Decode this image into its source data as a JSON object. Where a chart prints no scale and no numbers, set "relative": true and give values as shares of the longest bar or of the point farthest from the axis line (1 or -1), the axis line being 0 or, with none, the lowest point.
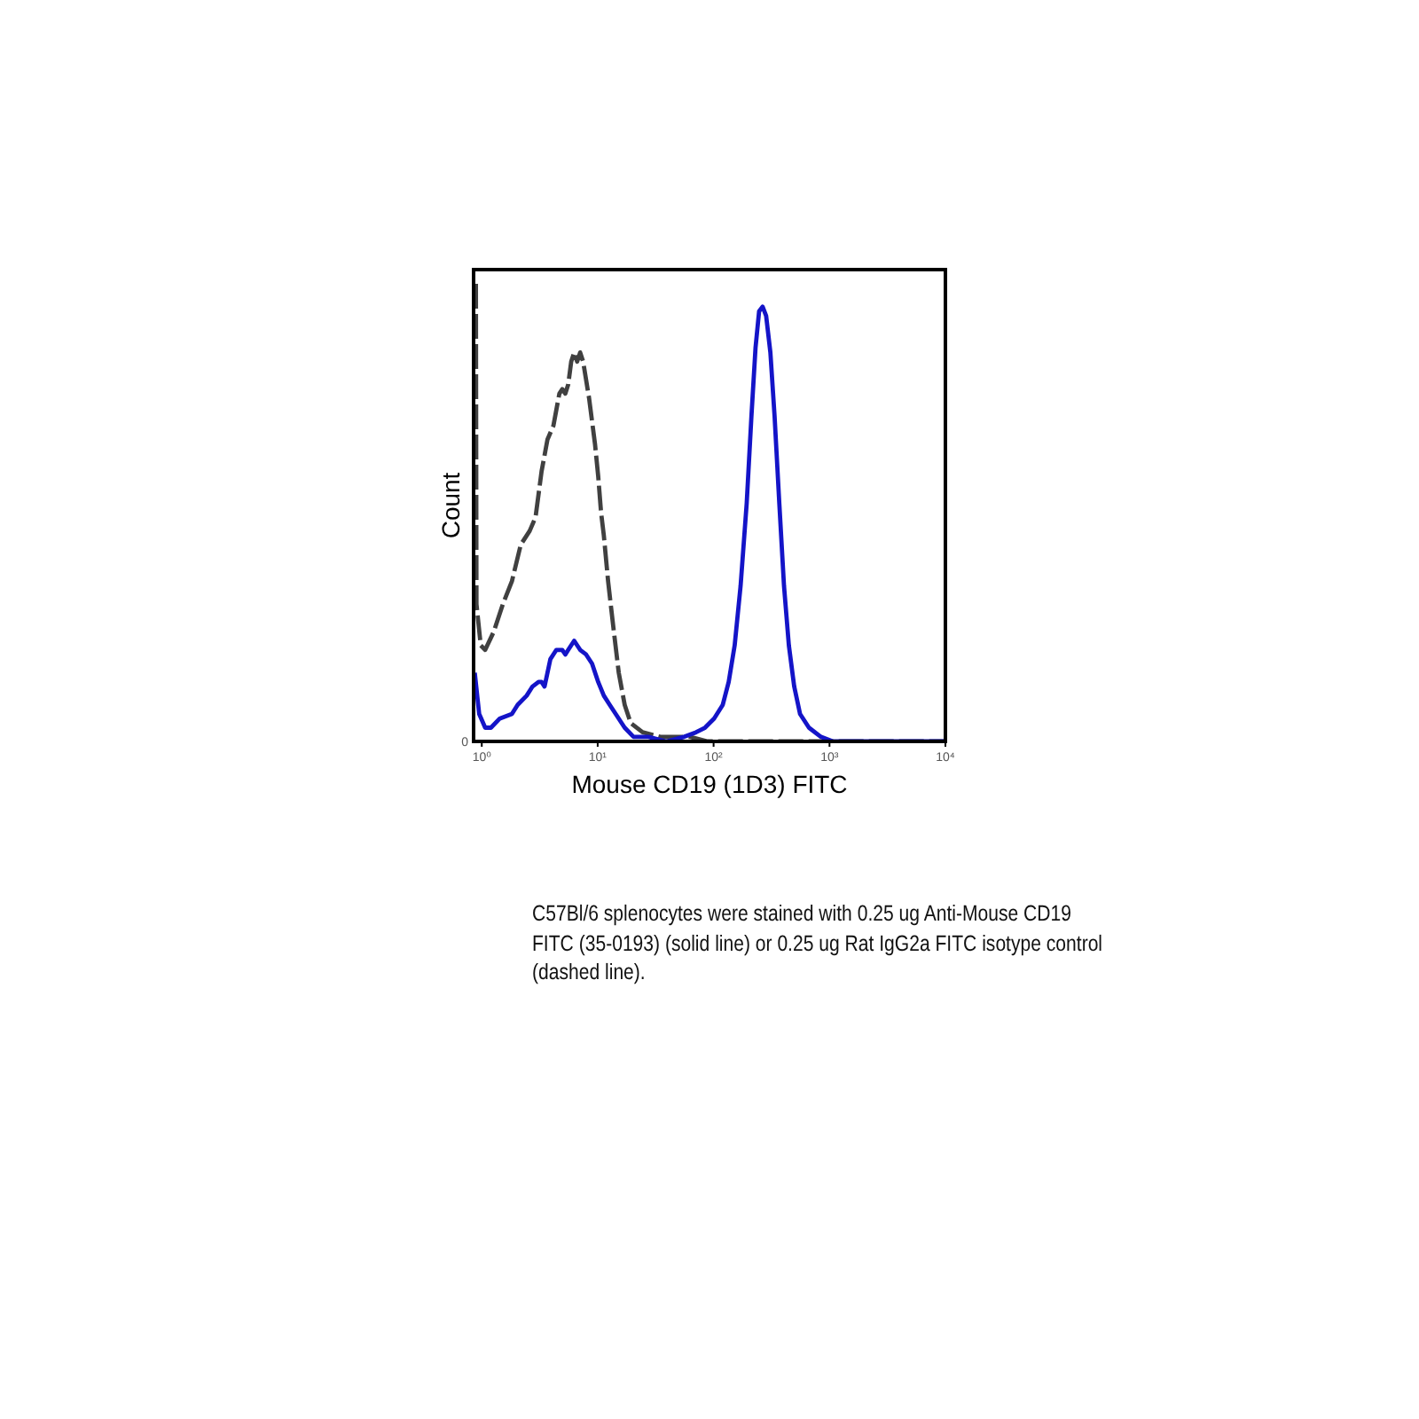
{
  "chart_data": {
    "type": "line",
    "relative": true,
    "xlabel": "Mouse CD19 (1D3) FITC",
    "ylabel": "Count",
    "log": "x",
    "xlim": [
      0.85,
      10000
    ],
    "xticks": [
      {
        "value": 1,
        "label": "10⁰"
      },
      {
        "value": 10,
        "label": "10¹"
      },
      {
        "value": 100,
        "label": "10²"
      },
      {
        "value": 1000,
        "label": "10³"
      },
      {
        "value": 10000,
        "label": "10⁴"
      }
    ],
    "series": [
      {
        "color": "#404040",
        "line_style": "dashed",
        "x": [
          0.89,
          0.9,
          0.98,
          1.07,
          1.27,
          1.52,
          1.82,
          2.17,
          2.59,
          2.91,
          3.28,
          3.69,
          4.15,
          4.67,
          4.95,
          5.26,
          5.57,
          5.91,
          6.27,
          6.65,
          7.06,
          7.49,
          8.43,
          9.48,
          10.1,
          10.7,
          11.3,
          12.3,
          13.5,
          15.2,
          17.1,
          19.3,
          24.4,
          34.8,
          62.7,
          89,
          10000
        ],
        "values": [
          1.0,
          0.3,
          0.21,
          0.2,
          0.24,
          0.3,
          0.35,
          0.43,
          0.46,
          0.49,
          0.59,
          0.66,
          0.69,
          0.76,
          0.77,
          0.76,
          0.78,
          0.83,
          0.85,
          0.83,
          0.85,
          0.83,
          0.75,
          0.65,
          0.58,
          0.5,
          0.45,
          0.35,
          0.26,
          0.15,
          0.08,
          0.04,
          0.02,
          0.01,
          0.01,
          0,
          0
        ]
      },
      {
        "color": "#1414c8",
        "line_style": "solid",
        "x": [
          0.87,
          0.95,
          1.07,
          1.2,
          1.43,
          1.82,
          2.04,
          2.44,
          2.74,
          3.09,
          3.28,
          3.48,
          3.91,
          4.4,
          4.95,
          5.26,
          5.57,
          6.27,
          7.06,
          7.94,
          8.94,
          10.1,
          11.3,
          12.7,
          14.3,
          17.1,
          20.4,
          27.4,
          39.1,
          55.7,
          70.6,
          84.3,
          101,
          120,
          135,
          152,
          171,
          193,
          212,
          230,
          247,
          265,
          284,
          309,
          336,
          369,
          405,
          446,
          496,
          557,
          665,
          843,
          1070,
          10000
        ],
        "values": [
          0.15,
          0.06,
          0.03,
          0.03,
          0.05,
          0.06,
          0.08,
          0.1,
          0.12,
          0.13,
          0.13,
          0.12,
          0.18,
          0.2,
          0.2,
          0.19,
          0.2,
          0.22,
          0.2,
          0.19,
          0.17,
          0.13,
          0.1,
          0.08,
          0.06,
          0.03,
          0.01,
          0.01,
          0,
          0.01,
          0.02,
          0.03,
          0.05,
          0.08,
          0.13,
          0.21,
          0.34,
          0.52,
          0.71,
          0.86,
          0.94,
          0.95,
          0.93,
          0.85,
          0.71,
          0.52,
          0.34,
          0.21,
          0.12,
          0.06,
          0.03,
          0.01,
          0,
          0
        ]
      }
    ],
    "annotations": [
      "0",
      "C57Bl/6 splenocytes were stained with 0.25 ug Anti-Mouse CD19 FITC (35-0193) (solid line) or 0.25 ug Rat IgG2a FITC isotype control (dashed line)."
    ]
  }
}
